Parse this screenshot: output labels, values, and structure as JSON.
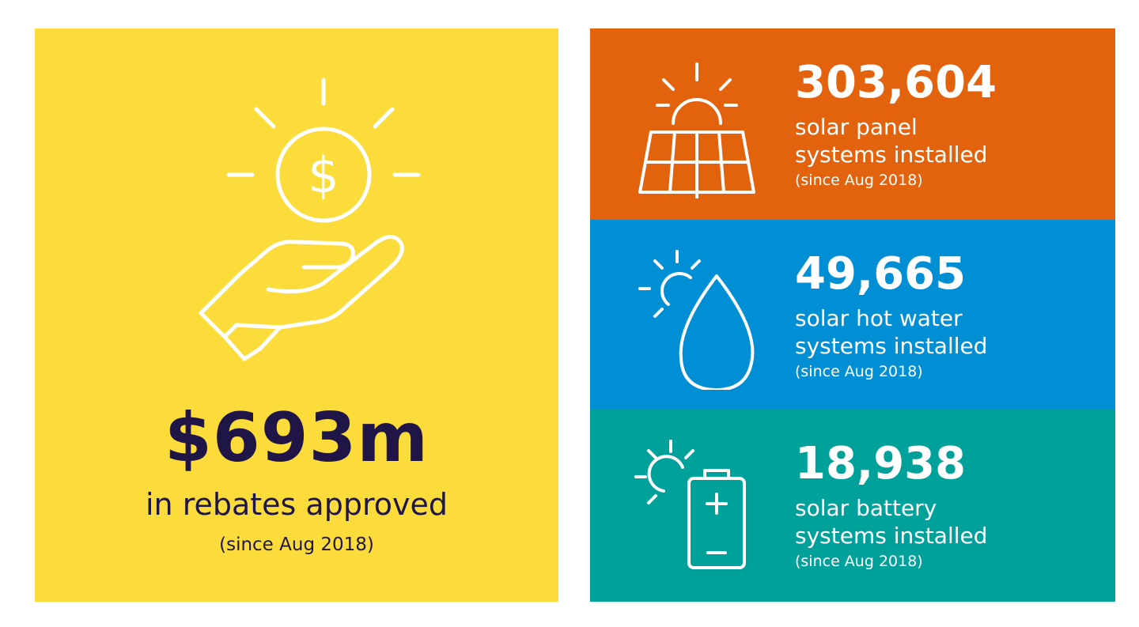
{
  "colors": {
    "yellow": "#fcdc3a",
    "orange": "#e2620e",
    "blue": "#008fd5",
    "teal": "#00a19a",
    "navy": "#201547"
  },
  "rebates": {
    "icon": "hand-holding-coin-icon",
    "value": "$693m",
    "label": "in rebates approved",
    "note": "(since Aug 2018)"
  },
  "stats": [
    {
      "icon": "solar-panel-icon",
      "value": "303,604",
      "line1": "solar panel",
      "line2": "systems installed",
      "note": "(since Aug 2018)"
    },
    {
      "icon": "sun-water-drop-icon",
      "value": "49,665",
      "line1": "solar hot water",
      "line2": "systems installed",
      "note": "(since Aug 2018)"
    },
    {
      "icon": "sun-battery-icon",
      "value": "18,938",
      "line1": "solar battery",
      "line2": "systems installed",
      "note": "(since Aug 2018)"
    }
  ]
}
